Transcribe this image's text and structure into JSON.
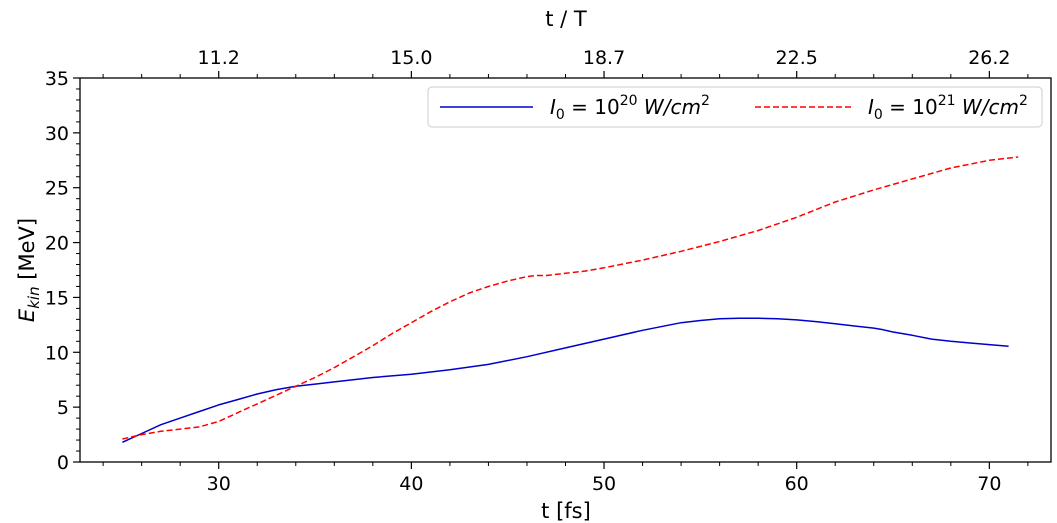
{
  "chart_data": {
    "type": "line",
    "xlabel": "t [fs]",
    "ylabel": "E",
    "ylabel_sub": "kin",
    "ylabel_unit": " [MeV]",
    "top_xlabel": "t / T",
    "xlim": [
      22.8,
      73.2
    ],
    "ylim": [
      0,
      35
    ],
    "xticks": [
      30,
      40,
      50,
      60,
      70
    ],
    "yticks": [
      0,
      5,
      10,
      15,
      20,
      25,
      30,
      35
    ],
    "top_ticks": [
      {
        "x": 30,
        "label": "11.2"
      },
      {
        "x": 40,
        "label": "15.0"
      },
      {
        "x": 50,
        "label": "18.7"
      },
      {
        "x": 60,
        "label": "22.5"
      },
      {
        "x": 70,
        "label": "26.2"
      }
    ],
    "legend_position": "top-right",
    "grid": false,
    "series": [
      {
        "name_base": "I",
        "name_sub": "0",
        "name_eq": " = 10",
        "name_sup": "20",
        "name_unit": " W/cm",
        "name_unit_sup": "2",
        "color": "#0000cc",
        "dash": "solid",
        "x": [
          25,
          26,
          27,
          28,
          29,
          30,
          31,
          32,
          33,
          34,
          35,
          36,
          38,
          40,
          42,
          44,
          46,
          48,
          50,
          52,
          54,
          55,
          56,
          57,
          58,
          59,
          60,
          61,
          62,
          63,
          64,
          64.5,
          65,
          66,
          67,
          68,
          69,
          70,
          71
        ],
        "values": [
          1.8,
          2.6,
          3.4,
          4.0,
          4.6,
          5.2,
          5.7,
          6.2,
          6.6,
          6.9,
          7.1,
          7.3,
          7.7,
          8.0,
          8.4,
          8.9,
          9.6,
          10.4,
          11.2,
          12.0,
          12.7,
          12.9,
          13.05,
          13.1,
          13.1,
          13.05,
          12.95,
          12.8,
          12.6,
          12.4,
          12.2,
          12.05,
          11.85,
          11.55,
          11.2,
          11.0,
          10.85,
          10.7,
          10.55
        ]
      },
      {
        "name_base": "I",
        "name_sub": "0",
        "name_eq": " = 10",
        "name_sup": "21",
        "name_unit": " W/cm",
        "name_unit_sup": "2",
        "color": "#ff0000",
        "dash": "dashed",
        "x": [
          25,
          26,
          27,
          28,
          29,
          30,
          31,
          32,
          33,
          34,
          35,
          36,
          37,
          38,
          39,
          40,
          41,
          42,
          43,
          44,
          45,
          46,
          46.5,
          47,
          48,
          49,
          50,
          52,
          54,
          56,
          58,
          60,
          62,
          64,
          66,
          68,
          70,
          71.5
        ],
        "values": [
          2.1,
          2.5,
          2.8,
          3.0,
          3.2,
          3.7,
          4.5,
          5.3,
          6.1,
          6.9,
          7.7,
          8.6,
          9.6,
          10.6,
          11.7,
          12.7,
          13.7,
          14.6,
          15.4,
          16.0,
          16.5,
          16.9,
          17.0,
          17.0,
          17.2,
          17.4,
          17.7,
          18.4,
          19.2,
          20.1,
          21.1,
          22.3,
          23.7,
          24.8,
          25.8,
          26.8,
          27.5,
          27.8
        ]
      }
    ]
  }
}
